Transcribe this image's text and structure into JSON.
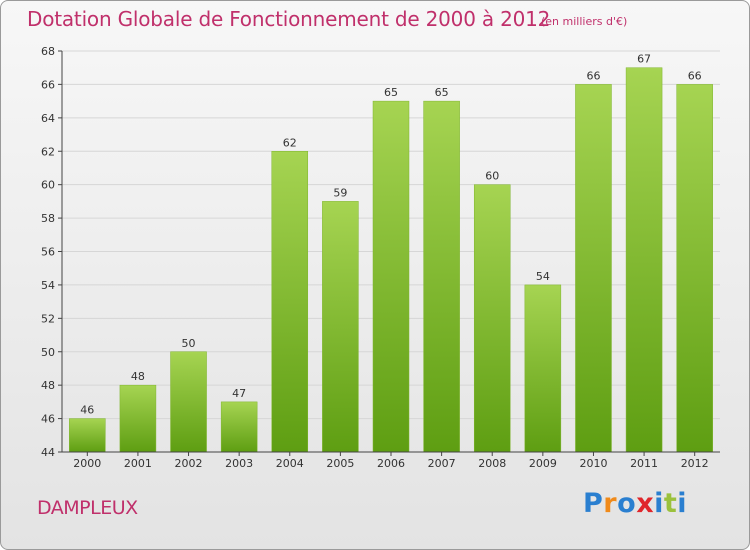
{
  "header": {
    "title": "Dotation Globale de Fonctionnement de 2000 à 2012",
    "unit": "(en milliers d'€)"
  },
  "footer": {
    "commune": "DAMPLEUX",
    "logo_text": "Proxiti"
  },
  "colors": {
    "title": "#c0306b",
    "bar_top": "#a6d452",
    "bar_bottom": "#5e9e12",
    "grid": "#d6d6d6",
    "axis": "#444444"
  },
  "chart_data": {
    "type": "bar",
    "title": "Dotation Globale de Fonctionnement de 2000 à 2012",
    "subtitle": "(en milliers d'€)",
    "xlabel": "",
    "ylabel": "",
    "categories": [
      "2000",
      "2001",
      "2002",
      "2003",
      "2004",
      "2005",
      "2006",
      "2007",
      "2008",
      "2009",
      "2010",
      "2011",
      "2012"
    ],
    "values": [
      46,
      48,
      50,
      47,
      62,
      59,
      65,
      65,
      60,
      54,
      66,
      67,
      66
    ],
    "ylim": [
      44,
      68
    ],
    "yticks": [
      44,
      46,
      48,
      50,
      52,
      54,
      56,
      58,
      60,
      62,
      64,
      66,
      68
    ],
    "grid": true,
    "data_labels": true
  }
}
